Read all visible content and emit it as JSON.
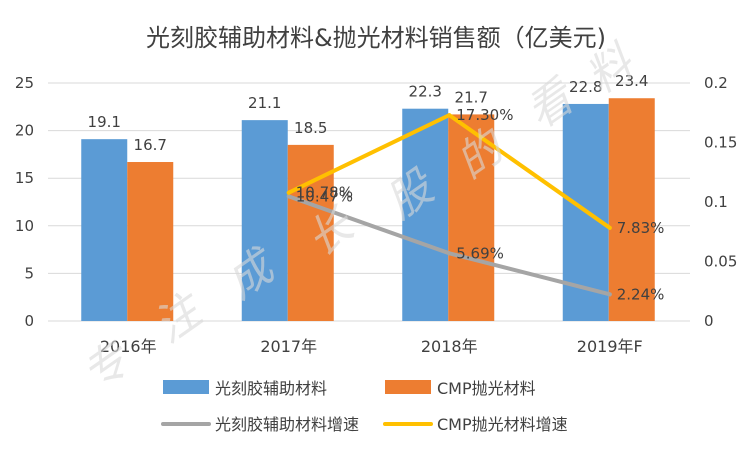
{
  "chart_data": {
    "type": "bar",
    "title": "光刻胶辅助材料&抛光材料销售额（亿美元)",
    "categories": [
      "2016年",
      "2017年",
      "2018年",
      "2019年F"
    ],
    "ylim": [
      0,
      25
    ],
    "yticks": [
      "0",
      "5",
      "10",
      "15",
      "20",
      "25"
    ],
    "y2lim": [
      0,
      0.2
    ],
    "y2ticks": [
      "0",
      "0.05",
      "0.1",
      "0.15",
      "0.2"
    ],
    "series": [
      {
        "name": "光刻胶辅助材料",
        "kind": "bar",
        "axis": "left",
        "color": "#5b9bd5",
        "values": [
          19.1,
          21.1,
          22.3,
          22.8
        ],
        "labels": [
          "19.1",
          "21.1",
          "22.3",
          "22.8"
        ]
      },
      {
        "name": "CMP抛光材料",
        "kind": "bar",
        "axis": "left",
        "color": "#ed7d31",
        "values": [
          16.7,
          18.5,
          21.7,
          23.4
        ],
        "labels": [
          "16.7",
          "18.5",
          "21.7",
          "23.4"
        ]
      },
      {
        "name": "光刻胶辅助材料增速",
        "kind": "line",
        "axis": "right",
        "color": "#a5a5a5",
        "values": [
          null,
          0.1047,
          0.0569,
          0.0224
        ],
        "labels": [
          "",
          "10.47%",
          "5.69%",
          "2.24%"
        ]
      },
      {
        "name": "CMP抛光材料增速",
        "kind": "line",
        "axis": "right",
        "color": "#ffc000",
        "values": [
          null,
          0.1078,
          0.173,
          0.0783
        ],
        "labels": [
          "",
          "10.78%",
          "17.30%",
          "7.83%"
        ]
      }
    ],
    "legend_position": "bottom"
  },
  "watermark": {
    "text": "专注成长股的看料",
    "color": "#d9d9d9"
  }
}
